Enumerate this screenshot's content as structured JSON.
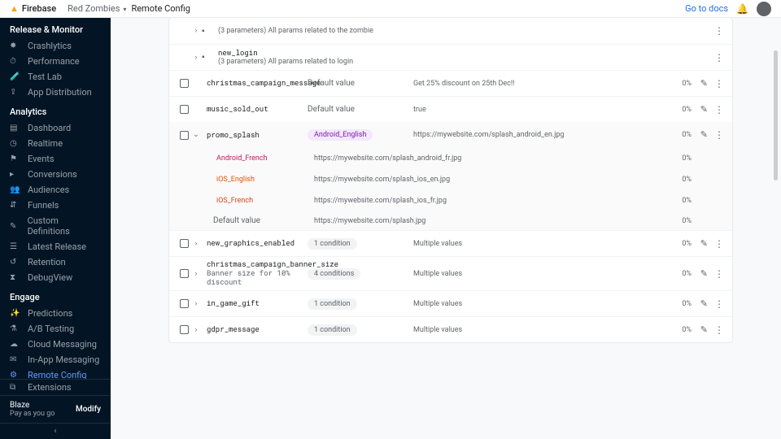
{
  "topbar": {
    "product": "Firebase",
    "project": "Red Zombies",
    "page": "Remote Config",
    "docs": "Go to docs"
  },
  "sidebar": {
    "sections": [
      {
        "title": "Release & Monitor",
        "items": [
          {
            "icon": "✸",
            "label": "Crashlytics"
          },
          {
            "icon": "⏱",
            "label": "Performance"
          },
          {
            "icon": "🧪",
            "label": "Test Lab"
          },
          {
            "icon": "⇪",
            "label": "App Distribution"
          }
        ]
      },
      {
        "title": "Analytics",
        "items": [
          {
            "icon": "▤",
            "label": "Dashboard"
          },
          {
            "icon": "◷",
            "label": "Realtime"
          },
          {
            "icon": "⚑",
            "label": "Events"
          },
          {
            "icon": "▸",
            "label": "Conversions"
          },
          {
            "icon": "👥",
            "label": "Audiences"
          },
          {
            "icon": "⇵",
            "label": "Funnels"
          },
          {
            "icon": "✎",
            "label": "Custom Definitions"
          },
          {
            "icon": "☰",
            "label": "Latest Release"
          },
          {
            "icon": "↺",
            "label": "Retention"
          },
          {
            "icon": "⧗",
            "label": "DebugView"
          }
        ]
      },
      {
        "title": "Engage",
        "items": [
          {
            "icon": "✨",
            "label": "Predictions"
          },
          {
            "icon": "⚗",
            "label": "A/B Testing"
          },
          {
            "icon": "☁",
            "label": "Cloud Messaging"
          },
          {
            "icon": "✉",
            "label": "In-App Messaging"
          },
          {
            "icon": "⚙",
            "label": "Remote Config",
            "active": true
          },
          {
            "icon": "🔗",
            "label": "Dynamic Links"
          },
          {
            "icon": "◧",
            "label": "AdMob"
          }
        ]
      }
    ],
    "extensions": "Extensions",
    "plan": "Blaze",
    "paygo": "Pay as you go",
    "modify": "Modify"
  },
  "groups": [
    {
      "name": "",
      "sub": "(3 parameters) All params related to the zombie"
    },
    {
      "name": "new_login",
      "sub": "(3 parameters) All params related to login"
    }
  ],
  "params": [
    {
      "name": "christmas_campaign_message",
      "cond": "Default value",
      "cond_type": "default",
      "value": "Get 25% discount on 25th Dec!!",
      "pct": "0%"
    },
    {
      "name": "music_sold_out",
      "cond": "Default value",
      "cond_type": "default",
      "value": "true",
      "pct": "0%"
    }
  ],
  "promo": {
    "name": "promo_splash",
    "rows": [
      {
        "cond": "Android_English",
        "chip": "purple",
        "value": "https://mywebsite.com/splash_android_en.jpg",
        "pct": "0%"
      },
      {
        "cond": "Android_French",
        "chip": "pink",
        "value": "https://mywebsite.com/splash_android_fr.jpg",
        "pct": "0%"
      },
      {
        "cond": "iOS_English",
        "chip": "orange",
        "value": "https://mywebsite.com/splash_ios_en.jpg",
        "pct": "0%"
      },
      {
        "cond": "iOS_French",
        "chip": "orange2",
        "value": "https://mywebsite.com/splash_ios_fr.jpg",
        "pct": "0%"
      },
      {
        "cond": "Default value",
        "chip": "default",
        "value": "https://mywebsite.com/splash.jpg",
        "pct": "0%"
      }
    ]
  },
  "more": [
    {
      "name": "new_graphics_enabled",
      "cond": "1 condition",
      "value": "Multiple values",
      "pct": "0%"
    },
    {
      "name": "christmas_campaign_banner_size",
      "desc": "Banner size for 10% discount",
      "cond": "4 conditions",
      "value": "Multiple values",
      "pct": "0%"
    },
    {
      "name": "in_game_gift",
      "cond": "1 condition",
      "value": "Multiple values",
      "pct": "0%"
    },
    {
      "name": "gdpr_message",
      "cond": "1 condition",
      "value": "Multiple values",
      "pct": "0%"
    }
  ]
}
